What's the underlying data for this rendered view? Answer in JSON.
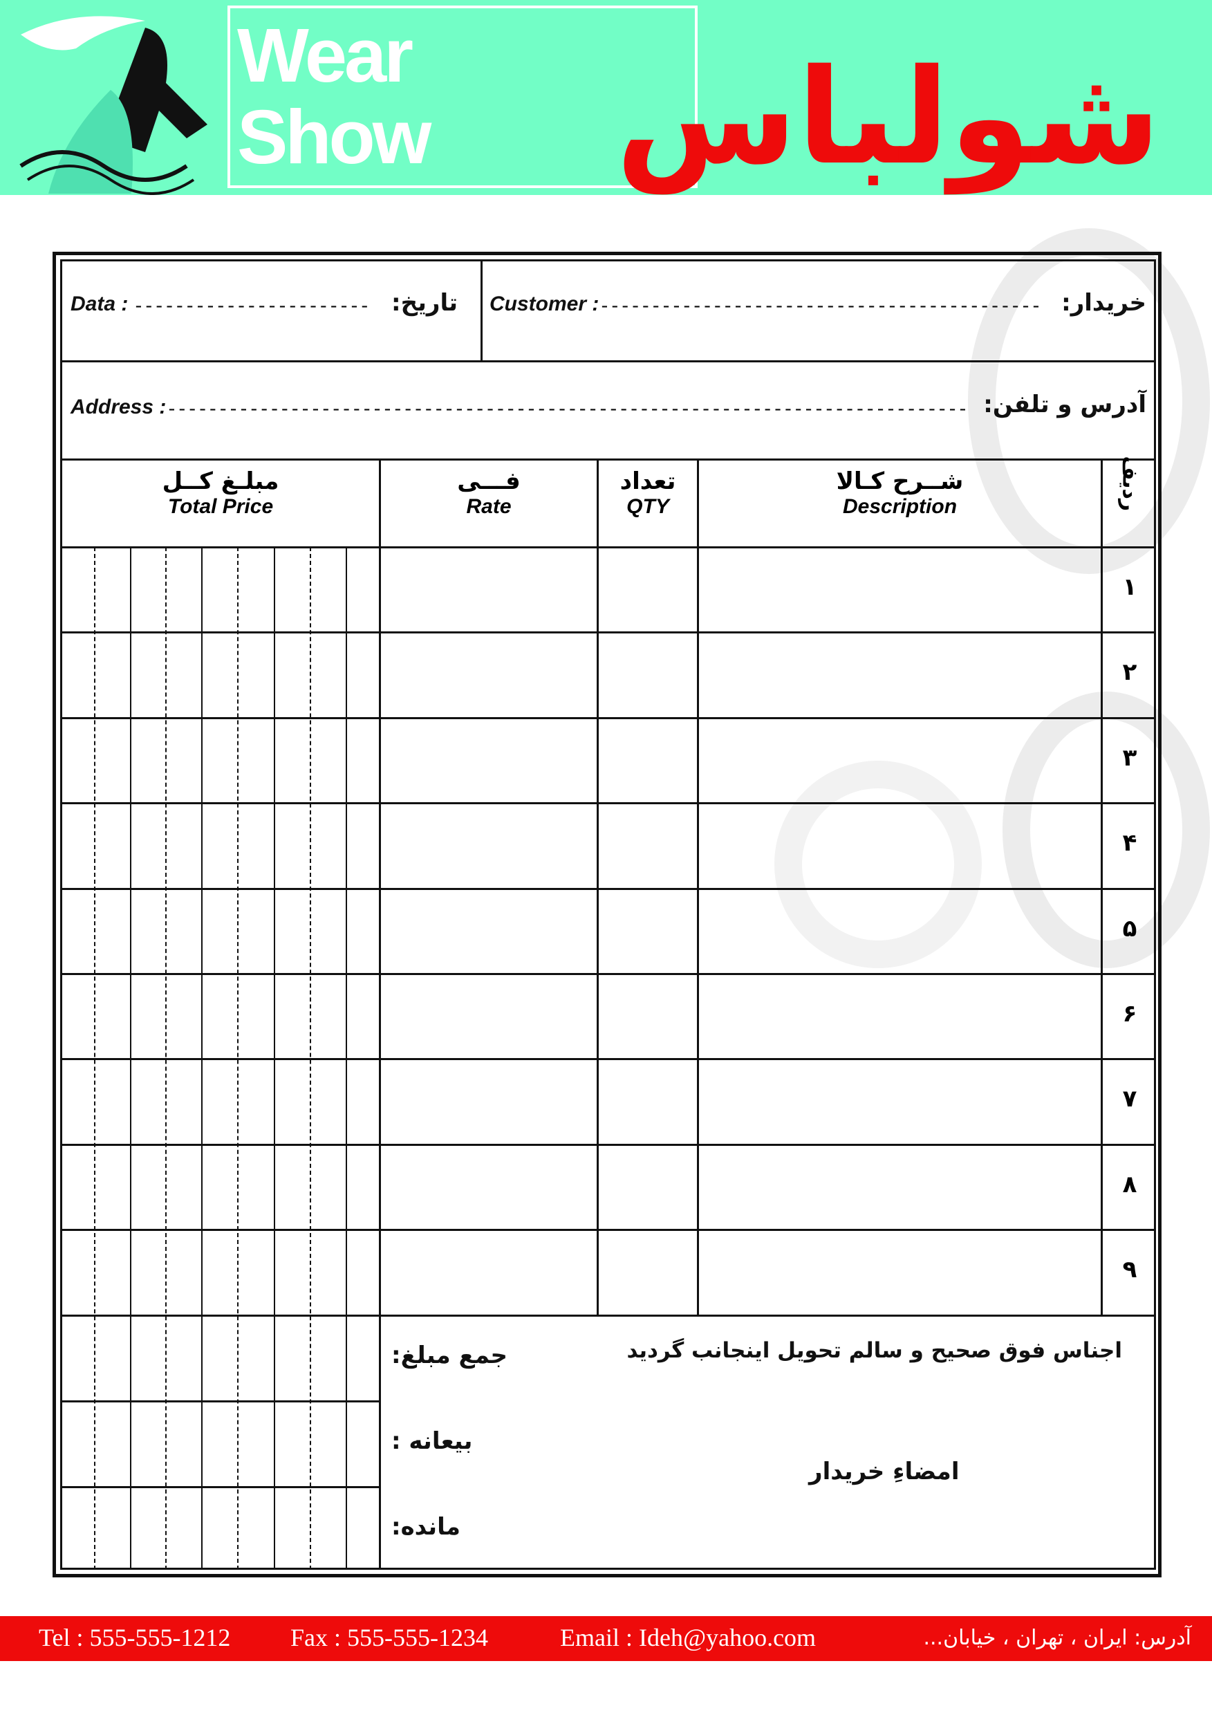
{
  "header": {
    "brand_en": "Wear Show",
    "brand_fa": "شولباس",
    "colors": {
      "band": "#72fec6",
      "brand_red": "#ee0b0b"
    }
  },
  "form": {
    "date_en": "Data :",
    "date_fa": "تاریخ:",
    "customer_en": "Customer :",
    "customer_fa": "خریدار:",
    "address_en": "Address :",
    "address_fa": "آدرس و تلفن:"
  },
  "table": {
    "columns": [
      {
        "fa": "ردیف",
        "en": ""
      },
      {
        "fa": "شــرح کـالا",
        "en": "Description"
      },
      {
        "fa": "تعداد",
        "en": "QTY"
      },
      {
        "fa": "فـــی",
        "en": "Rate"
      },
      {
        "fa": "مبلـغ کــل",
        "en": "Total Price"
      }
    ],
    "rows": [
      "۱",
      "۲",
      "۳",
      "۴",
      "۵",
      "۶",
      "۷",
      "۸",
      "۹"
    ]
  },
  "summary": {
    "total": "جمع مبلغ:",
    "deposit": "بیعانه :",
    "remaining": "مانده:",
    "receipt_note": "اجناس فوق صحیح و سالم تحویل اینجانب گردید",
    "signature": "امضاءِ خریدار"
  },
  "footer": {
    "tel": "Tel  : 555-555-1212",
    "fax": "Fax : 555-555-1234",
    "email": "Email : Ideh@yahoo.com",
    "address": "آدرس: ایران ، تهران ، خیابان..."
  }
}
